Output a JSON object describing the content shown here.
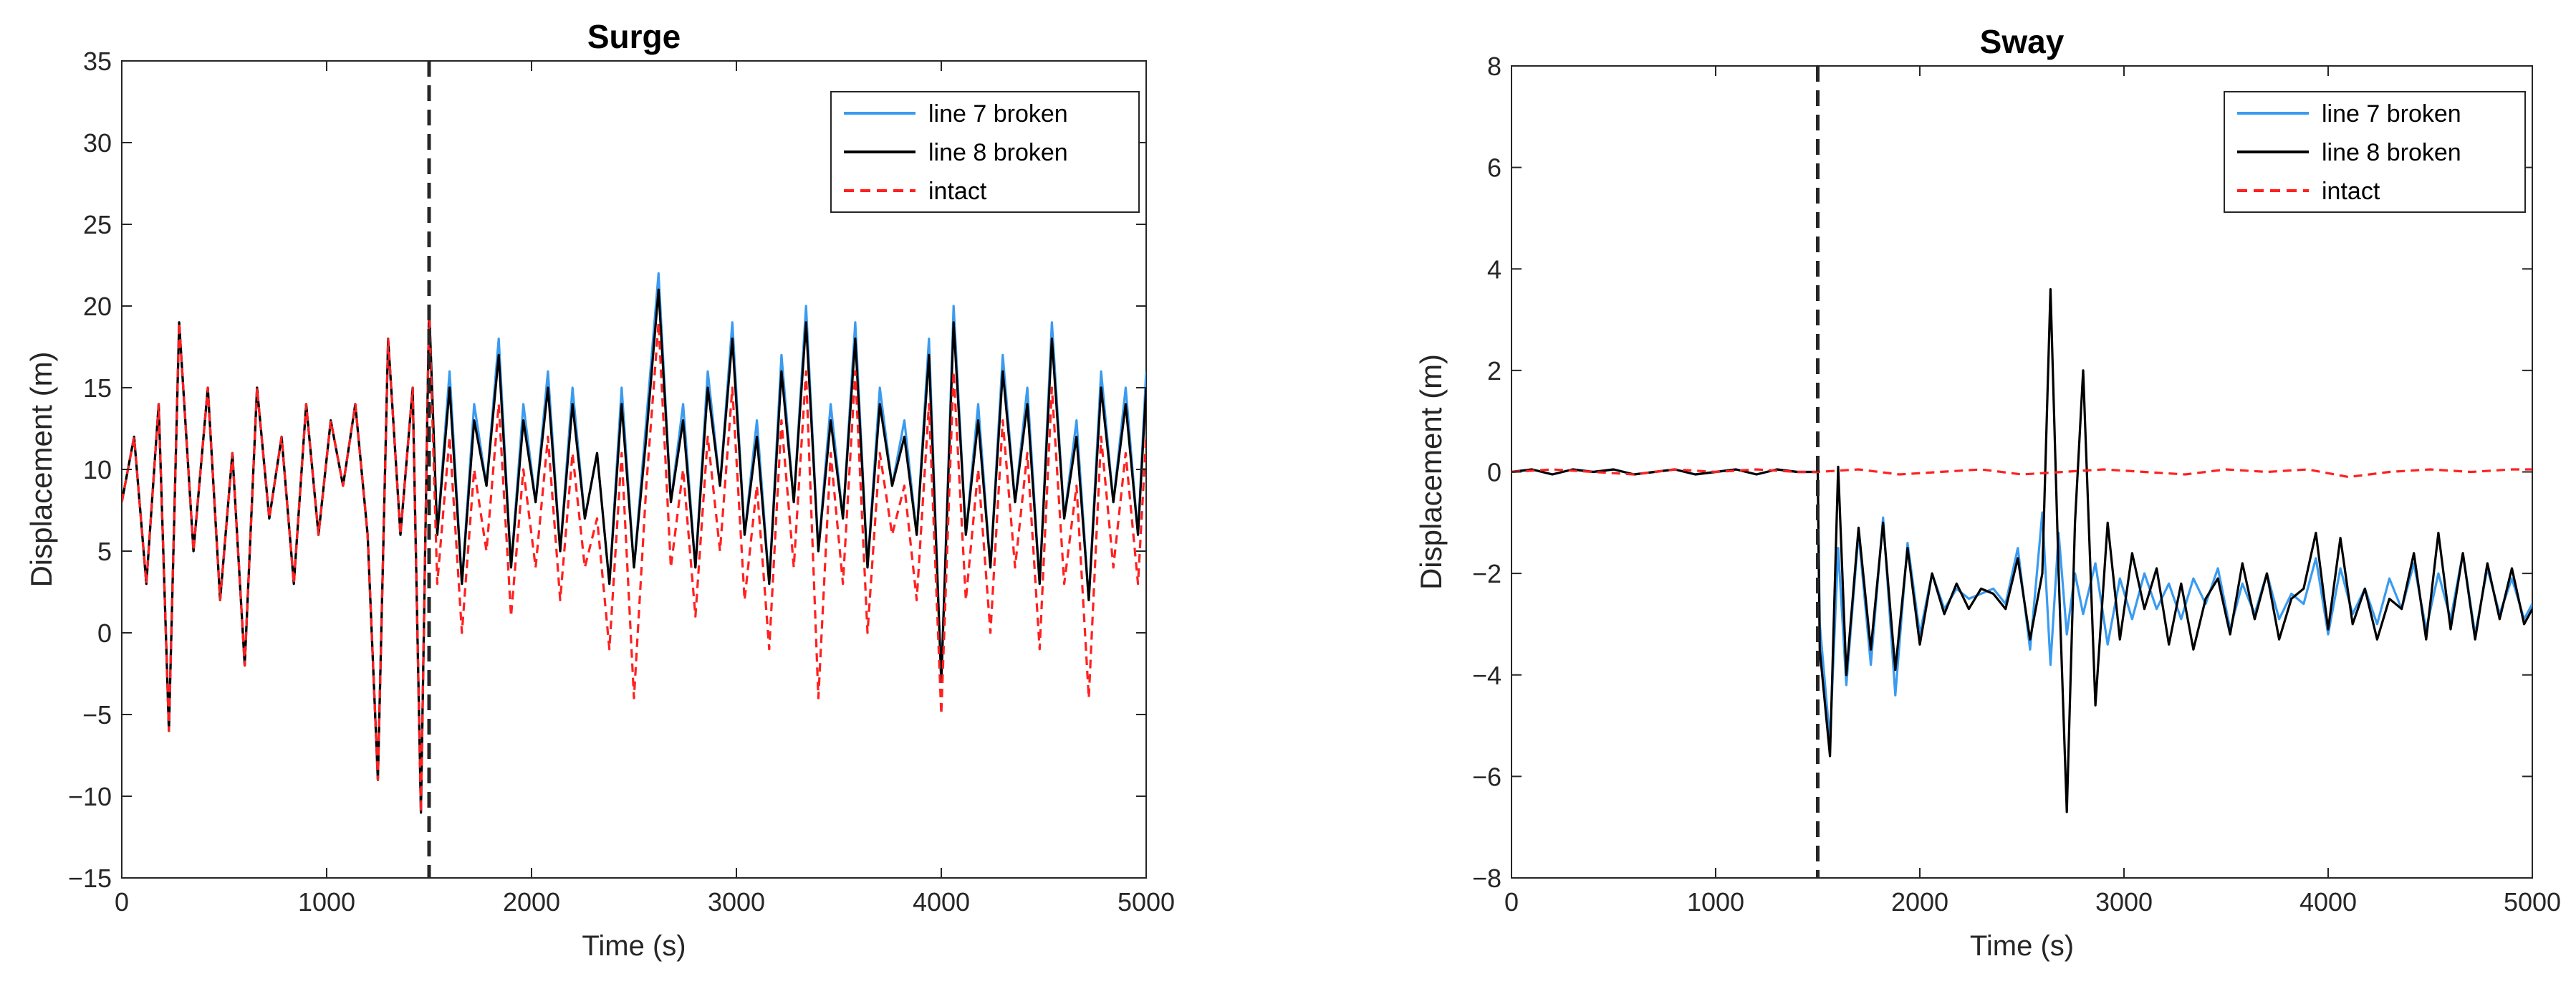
{
  "chart_data": [
    {
      "type": "line",
      "title": "Surge",
      "xlabel": "Time (s)",
      "ylabel": "Displacement (m)",
      "xlim": [
        0,
        5000
      ],
      "ylim": [
        -15,
        35
      ],
      "xticks": [
        0,
        1000,
        2000,
        3000,
        4000,
        5000
      ],
      "yticks": [
        -15,
        -10,
        -5,
        0,
        5,
        10,
        15,
        20,
        25,
        30,
        35
      ],
      "ytick_labels": [
        "−15",
        "−10",
        "−5",
        "0",
        "5",
        "10",
        "15",
        "20",
        "25",
        "30",
        "35"
      ],
      "grid": false,
      "legend_position": "top-right",
      "event_marker_x": 1500,
      "series": [
        {
          "name": "line 7 broken",
          "color": "#3a9bf0",
          "style": "solid",
          "x": [
            0,
            60,
            120,
            180,
            230,
            280,
            350,
            420,
            480,
            540,
            600,
            660,
            720,
            780,
            840,
            900,
            960,
            1020,
            1080,
            1140,
            1200,
            1250,
            1300,
            1360,
            1420,
            1460,
            1500,
            1540,
            1600,
            1660,
            1720,
            1780,
            1840,
            1900,
            1960,
            2020,
            2080,
            2140,
            2200,
            2260,
            2320,
            2380,
            2440,
            2500,
            2560,
            2620,
            2680,
            2740,
            2800,
            2860,
            2920,
            2980,
            3040,
            3100,
            3160,
            3220,
            3280,
            3340,
            3400,
            3460,
            3520,
            3580,
            3640,
            3700,
            3760,
            3820,
            3880,
            3940,
            4000,
            4060,
            4120,
            4180,
            4240,
            4300,
            4360,
            4420,
            4480,
            4540,
            4600,
            4660,
            4720,
            4780,
            4840,
            4900,
            4960,
            5000
          ],
          "values": [
            8,
            12,
            3,
            14,
            -6,
            19,
            5,
            15,
            2,
            11,
            -2,
            15,
            7,
            12,
            3,
            14,
            6,
            13,
            9,
            14,
            6,
            -9,
            18,
            6,
            15,
            -11,
            20,
            6,
            16,
            3,
            14,
            9,
            18,
            4,
            14,
            8,
            16,
            5,
            15,
            7,
            11,
            3,
            15,
            4,
            13,
            22,
            8,
            14,
            4,
            16,
            9,
            19,
            6,
            13,
            3,
            17,
            8,
            20,
            5,
            14,
            7,
            19,
            4,
            15,
            9,
            13,
            6,
            18,
            -3,
            20,
            6,
            14,
            4,
            17,
            8,
            15,
            3,
            19,
            7,
            13,
            2,
            16,
            8,
            15,
            6,
            16
          ]
        },
        {
          "name": "line 8 broken",
          "color": "#000000",
          "style": "solid",
          "x": [
            0,
            60,
            120,
            180,
            230,
            280,
            350,
            420,
            480,
            540,
            600,
            660,
            720,
            780,
            840,
            900,
            960,
            1020,
            1080,
            1140,
            1200,
            1250,
            1300,
            1360,
            1420,
            1460,
            1500,
            1540,
            1600,
            1660,
            1720,
            1780,
            1840,
            1900,
            1960,
            2020,
            2080,
            2140,
            2200,
            2260,
            2320,
            2380,
            2440,
            2500,
            2560,
            2620,
            2680,
            2740,
            2800,
            2860,
            2920,
            2980,
            3040,
            3100,
            3160,
            3220,
            3280,
            3340,
            3400,
            3460,
            3520,
            3580,
            3640,
            3700,
            3760,
            3820,
            3880,
            3940,
            4000,
            4060,
            4120,
            4180,
            4240,
            4300,
            4360,
            4420,
            4480,
            4540,
            4600,
            4660,
            4720,
            4780,
            4840,
            4900,
            4960,
            5000
          ],
          "values": [
            8,
            12,
            3,
            14,
            -6,
            19,
            5,
            15,
            2,
            11,
            -2,
            15,
            7,
            12,
            3,
            14,
            6,
            13,
            9,
            14,
            6,
            -9,
            18,
            6,
            15,
            -11,
            20,
            6,
            15,
            3,
            13,
            9,
            17,
            4,
            13,
            8,
            15,
            5,
            14,
            7,
            11,
            3,
            14,
            4,
            12,
            21,
            8,
            13,
            4,
            15,
            9,
            18,
            6,
            12,
            3,
            16,
            8,
            19,
            5,
            13,
            7,
            18,
            4,
            14,
            9,
            12,
            6,
            17,
            -3,
            19,
            6,
            13,
            4,
            16,
            8,
            14,
            3,
            18,
            7,
            12,
            2,
            15,
            8,
            14,
            6,
            15
          ]
        },
        {
          "name": "intact",
          "color": "#ff2020",
          "style": "dashed",
          "x": [
            0,
            60,
            120,
            180,
            230,
            280,
            350,
            420,
            480,
            540,
            600,
            660,
            720,
            780,
            840,
            900,
            960,
            1020,
            1080,
            1140,
            1200,
            1250,
            1300,
            1360,
            1420,
            1460,
            1500,
            1540,
            1600,
            1660,
            1720,
            1780,
            1840,
            1900,
            1960,
            2020,
            2080,
            2140,
            2200,
            2260,
            2320,
            2380,
            2440,
            2500,
            2560,
            2620,
            2680,
            2740,
            2800,
            2860,
            2920,
            2980,
            3040,
            3100,
            3160,
            3220,
            3280,
            3340,
            3400,
            3460,
            3520,
            3580,
            3640,
            3700,
            3760,
            3820,
            3880,
            3940,
            4000,
            4060,
            4120,
            4180,
            4240,
            4300,
            4360,
            4420,
            4480,
            4540,
            4600,
            4660,
            4720,
            4780,
            4840,
            4900,
            4960,
            5000
          ],
          "values": [
            8,
            12,
            3,
            14,
            -6,
            19,
            5,
            15,
            2,
            11,
            -2,
            15,
            7,
            12,
            3,
            14,
            6,
            13,
            9,
            14,
            6,
            -9,
            18,
            6,
            15,
            -11,
            20,
            3,
            12,
            0,
            10,
            5,
            14,
            1,
            10,
            4,
            12,
            2,
            11,
            4,
            7,
            -1,
            11,
            -4,
            9,
            19,
            4,
            10,
            1,
            12,
            5,
            15,
            2,
            9,
            -1,
            13,
            4,
            16,
            -4,
            11,
            3,
            16,
            0,
            11,
            6,
            9,
            2,
            14,
            -5,
            16,
            2,
            10,
            0,
            13,
            4,
            11,
            -1,
            15,
            3,
            9,
            -4,
            12,
            4,
            11,
            3,
            12
          ]
        }
      ]
    },
    {
      "type": "line",
      "title": "Sway",
      "xlabel": "Time (s)",
      "ylabel": "Displacement (m)",
      "xlim": [
        0,
        5000
      ],
      "ylim": [
        -8,
        8
      ],
      "xticks": [
        0,
        1000,
        2000,
        3000,
        4000,
        5000
      ],
      "yticks": [
        -8,
        -6,
        -4,
        -2,
        0,
        2,
        4,
        6,
        8
      ],
      "ytick_labels": [
        "−8",
        "−6",
        "−4",
        "−2",
        "0",
        "2",
        "4",
        "6",
        "8"
      ],
      "grid": false,
      "legend_position": "top-right",
      "event_marker_x": 1500,
      "series": [
        {
          "name": "line 7 broken",
          "color": "#3a9bf0",
          "style": "solid",
          "x": [
            0,
            100,
            200,
            300,
            400,
            500,
            600,
            700,
            800,
            900,
            1000,
            1100,
            1200,
            1300,
            1400,
            1500,
            1510,
            1560,
            1600,
            1640,
            1700,
            1760,
            1820,
            1880,
            1940,
            2000,
            2060,
            2120,
            2180,
            2240,
            2300,
            2360,
            2420,
            2480,
            2540,
            2600,
            2640,
            2680,
            2720,
            2760,
            2800,
            2860,
            2920,
            2980,
            3040,
            3100,
            3160,
            3220,
            3280,
            3340,
            3400,
            3460,
            3520,
            3580,
            3640,
            3700,
            3760,
            3820,
            3880,
            3940,
            4000,
            4060,
            4120,
            4180,
            4240,
            4300,
            4360,
            4420,
            4480,
            4540,
            4600,
            4660,
            4720,
            4780,
            4840,
            4900,
            4960,
            5000
          ],
          "values": [
            0,
            0.05,
            -0.05,
            0.05,
            0,
            0.05,
            -0.05,
            0,
            0.05,
            -0.05,
            0,
            0.05,
            -0.05,
            0.05,
            0,
            0,
            -3,
            -5.3,
            -1.5,
            -4.2,
            -1.2,
            -3.8,
            -0.9,
            -4.4,
            -1.4,
            -3.2,
            -2,
            -2.7,
            -2.3,
            -2.5,
            -2.4,
            -2.3,
            -2.6,
            -1.5,
            -3.5,
            -0.8,
            -3.8,
            -1.2,
            -3.2,
            -2,
            -2.8,
            -1.8,
            -3.4,
            -2.1,
            -2.9,
            -2,
            -2.7,
            -2.2,
            -2.9,
            -2.1,
            -2.6,
            -1.9,
            -3.1,
            -2.2,
            -2.8,
            -2,
            -2.9,
            -2.4,
            -2.6,
            -1.7,
            -3.2,
            -1.9,
            -2.8,
            -2.3,
            -3,
            -2.1,
            -2.7,
            -1.8,
            -3.1,
            -2,
            -2.9,
            -1.6,
            -3.2,
            -1.9,
            -2.8,
            -2.1,
            -2.9,
            -2.6
          ]
        },
        {
          "name": "line 8 broken",
          "color": "#000000",
          "style": "solid",
          "x": [
            0,
            100,
            200,
            300,
            400,
            500,
            600,
            700,
            800,
            900,
            1000,
            1100,
            1200,
            1300,
            1400,
            1500,
            1510,
            1560,
            1600,
            1640,
            1700,
            1760,
            1820,
            1880,
            1940,
            2000,
            2060,
            2120,
            2180,
            2240,
            2300,
            2360,
            2420,
            2480,
            2540,
            2600,
            2640,
            2680,
            2720,
            2760,
            2800,
            2860,
            2920,
            2980,
            3040,
            3100,
            3160,
            3220,
            3280,
            3340,
            3400,
            3460,
            3520,
            3580,
            3640,
            3700,
            3760,
            3820,
            3880,
            3940,
            4000,
            4060,
            4120,
            4180,
            4240,
            4300,
            4360,
            4420,
            4480,
            4540,
            4600,
            4660,
            4720,
            4780,
            4840,
            4900,
            4960,
            5000
          ],
          "values": [
            0,
            0.05,
            -0.05,
            0.05,
            0,
            0.05,
            -0.05,
            0,
            0.05,
            -0.05,
            0,
            0.05,
            -0.05,
            0.05,
            0,
            0,
            -3.5,
            -5.6,
            0.1,
            -4,
            -1.1,
            -3.5,
            -1,
            -3.9,
            -1.5,
            -3.4,
            -2,
            -2.8,
            -2.2,
            -2.7,
            -2.3,
            -2.4,
            -2.7,
            -1.7,
            -3.3,
            -2,
            3.6,
            -2,
            -6.7,
            -1,
            2,
            -4.6,
            -1,
            -3.3,
            -1.6,
            -2.7,
            -1.9,
            -3.4,
            -2.2,
            -3.5,
            -2.5,
            -2.1,
            -3.2,
            -1.8,
            -2.9,
            -2,
            -3.3,
            -2.5,
            -2.3,
            -1.2,
            -3.1,
            -1.3,
            -3,
            -2.3,
            -3.3,
            -2.5,
            -2.7,
            -1.6,
            -3.3,
            -1.2,
            -3.1,
            -1.6,
            -3.3,
            -1.8,
            -2.9,
            -1.9,
            -3,
            -2.7
          ]
        },
        {
          "name": "intact",
          "color": "#ff2020",
          "style": "dashed",
          "x": [
            0,
            200,
            400,
            600,
            800,
            1000,
            1200,
            1400,
            1500,
            1700,
            1900,
            2100,
            2300,
            2500,
            2700,
            2900,
            3100,
            3300,
            3500,
            3700,
            3900,
            4100,
            4300,
            4500,
            4700,
            4900,
            5000
          ],
          "values": [
            0,
            0.05,
            0,
            -0.05,
            0.05,
            0,
            0.05,
            0,
            0,
            0.05,
            -0.05,
            0,
            0.05,
            -0.05,
            0,
            0.05,
            0,
            -0.05,
            0.05,
            0,
            0.05,
            -0.1,
            0,
            0.05,
            0,
            0.05,
            0.05
          ]
        }
      ]
    }
  ]
}
